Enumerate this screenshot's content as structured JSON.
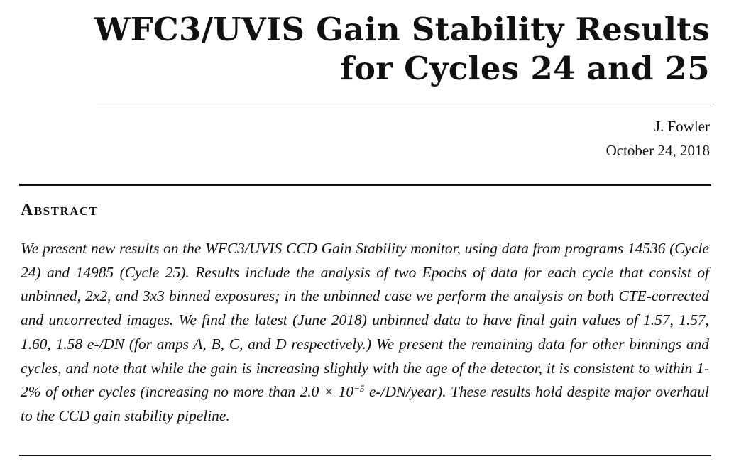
{
  "header": {
    "title_line1": "WFC3/UVIS Gain Stability Results",
    "title_line2": "for Cycles 24 and 25",
    "author": "J. Fowler",
    "date": "October 24, 2018"
  },
  "abstract": {
    "heading": "Abstract",
    "text_before_exponent": "We present new results on the WFC3/UVIS CCD Gain Stability monitor, using data from programs 14536 (Cycle 24) and 14985 (Cycle 25). Results include the analysis of two Epochs of data for each cycle that consist of unbinned, 2x2, and 3x3 binned exposures; in the unbinned case we perform the analysis on both CTE-corrected and uncorrected images. We find the latest (June 2018) unbinned data to have final gain values of 1.57, 1.57, 1.60, 1.58 e-/DN (for amps A, B, C, and D respectively.) We present the remaining data for other binnings and cycles, and note that while the gain is increasing slightly with the age of the detector, it is consistent to within 1-2% of other cycles (increasing no more than 2.0 × 10",
    "exponent": "−5",
    "text_after_exponent": " e-/DN/year). These results hold despite major overhaul to the CCD gain stability pipeline."
  }
}
